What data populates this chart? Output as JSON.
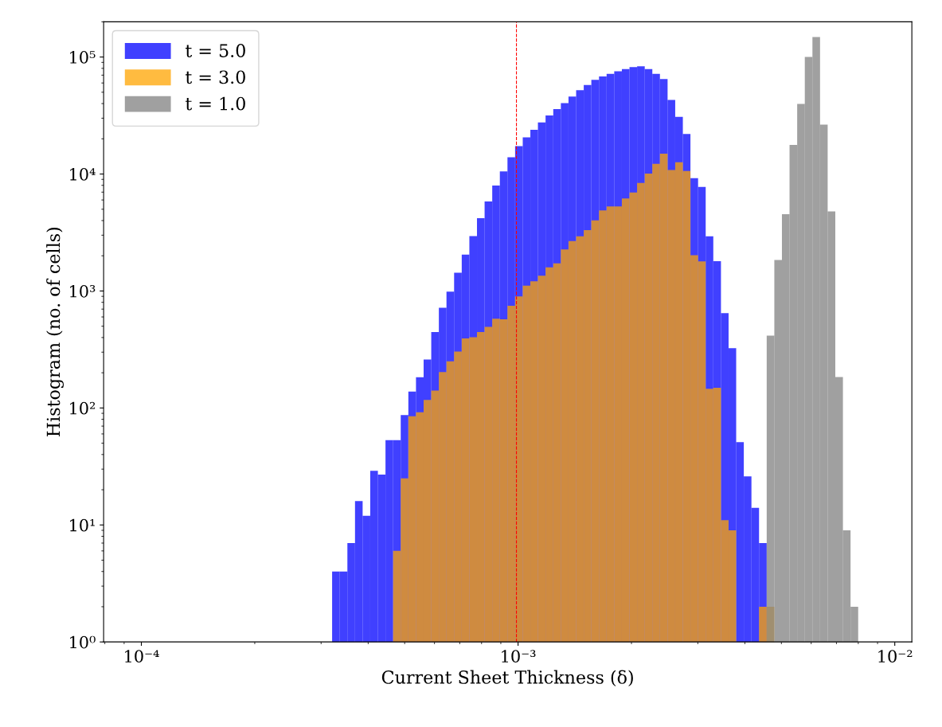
{
  "chart_data": {
    "type": "histogram",
    "xlabel": "Current Sheet Thickness (δ)",
    "ylabel": "Histogram (no. of cells)",
    "log": "xy",
    "grid": false,
    "legend": "top left",
    "xlim": [
      7.94e-05,
      0.0111
    ],
    "ylim": [
      1,
      200000
    ],
    "xticks": [
      {
        "value": 0.0001,
        "label": "10⁻⁴"
      },
      {
        "value": 0.001,
        "label": "10⁻³"
      },
      {
        "value": 0.01,
        "label": "10⁻²"
      }
    ],
    "yticks": [
      {
        "value": 1,
        "label": "10⁰"
      },
      {
        "value": 10,
        "label": "10¹"
      },
      {
        "value": 100,
        "label": "10²"
      },
      {
        "value": 1000,
        "label": "10³"
      },
      {
        "value": 10000,
        "label": "10⁴"
      },
      {
        "value": 100000,
        "label": "10⁵"
      }
    ],
    "bins": [
      0.0003209,
      0.0003362,
      0.0003523,
      0.0003691,
      0.0003867,
      0.0004051,
      0.0004245,
      0.0004447,
      0.0004659,
      0.0004881,
      0.0005114,
      0.0005358,
      0.0005614,
      0.0005882,
      0.0006162,
      0.0006456,
      0.0006764,
      0.0007087,
      0.0007425,
      0.0007779,
      0.000815,
      0.0008539,
      0.0008946,
      0.0009373,
      0.000982,
      0.001029,
      0.001078,
      0.001129,
      0.001183,
      0.00124,
      0.001299,
      0.001361,
      0.001426,
      0.001494,
      0.001565,
      0.00164,
      0.001718,
      0.0018,
      0.001886,
      0.001976,
      0.00207,
      0.002169,
      0.002272,
      0.00238,
      0.002494,
      0.002613,
      0.002738,
      0.002868,
      0.003005,
      0.003148,
      0.003298,
      0.003456,
      0.003621,
      0.003793,
      0.003974,
      0.004164,
      0.004362,
      0.004571,
      0.004789,
      0.005017,
      0.005256,
      0.005507,
      0.00577,
      0.006045,
      0.006333,
      0.006635,
      0.006952,
      0.007284,
      0.007631,
      0.007995
    ],
    "series": [
      {
        "name": "t = 5.0",
        "color": "#4040ff",
        "values": [
          4,
          4,
          7,
          16,
          12,
          29,
          27,
          53,
          53,
          87,
          138,
          183,
          260,
          445,
          720,
          989,
          1433,
          2050,
          2946,
          4190,
          5820,
          7980,
          10520,
          13900,
          17300,
          20600,
          23900,
          27600,
          31700,
          35900,
          40300,
          46000,
          52100,
          57700,
          63900,
          68200,
          71900,
          75500,
          78900,
          82000,
          83200,
          78900,
          71900,
          64900,
          43000,
          30800,
          22000,
          9230,
          7740,
          2930,
          1800,
          647,
          325,
          51,
          26,
          14,
          7,
          null,
          null,
          null,
          null,
          null,
          null,
          null,
          null,
          null,
          null,
          null,
          null
        ]
      },
      {
        "name": "t = 3.0",
        "color": "#ffbb40",
        "values": [
          null,
          null,
          null,
          null,
          null,
          null,
          null,
          null,
          6,
          25,
          85,
          92,
          117,
          141,
          203,
          251,
          304,
          393,
          402,
          446,
          494,
          580,
          572,
          748,
          899,
          1110,
          1210,
          1350,
          1590,
          1720,
          2270,
          2670,
          2930,
          3320,
          4010,
          4890,
          5290,
          5290,
          6170,
          6940,
          8390,
          10100,
          12200,
          14900,
          10800,
          12600,
          10600,
          2020,
          1790,
          146,
          149,
          11,
          9,
          null,
          null,
          null,
          2,
          2,
          null,
          null,
          null,
          null,
          null,
          null,
          null,
          null,
          null,
          null,
          null
        ]
      },
      {
        "name": "t = 1.0",
        "color": "#a0a0a0",
        "values": [
          null,
          null,
          null,
          null,
          null,
          null,
          null,
          null,
          null,
          null,
          null,
          null,
          null,
          null,
          null,
          null,
          null,
          null,
          null,
          null,
          null,
          null,
          null,
          null,
          null,
          null,
          null,
          null,
          null,
          null,
          null,
          null,
          null,
          null,
          null,
          null,
          null,
          null,
          null,
          null,
          null,
          null,
          null,
          null,
          null,
          null,
          null,
          null,
          null,
          null,
          null,
          null,
          null,
          null,
          null,
          null,
          null,
          416,
          1840,
          4530,
          17700,
          39700,
          100000,
          148000,
          26400,
          4790,
          184,
          9,
          2
        ]
      }
    ],
    "ref_lines": [
      {
        "axis": "x",
        "value": 0.00099,
        "color": "#ff0000",
        "line_style": "dashed"
      }
    ]
  }
}
